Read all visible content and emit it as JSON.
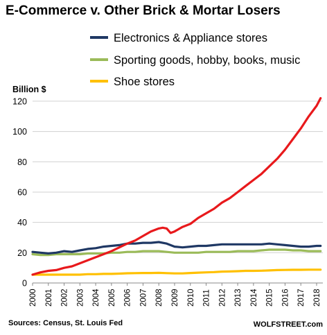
{
  "chart_data": {
    "type": "line",
    "title": "E-Commerce v. Other Brick & Mortar Losers",
    "ylabel": "Billion $",
    "ylim": [
      0,
      125
    ],
    "yticks": [
      0,
      20,
      40,
      60,
      80,
      100,
      120
    ],
    "xlim": [
      2000,
      2018
    ],
    "xticks": [
      "2000",
      "2001",
      "2002",
      "2003",
      "2004",
      "2005",
      "2006",
      "2007",
      "2008",
      "2009",
      "2010",
      "2011",
      "2012",
      "2013",
      "2014",
      "2015",
      "2016",
      "2017",
      "2018"
    ],
    "grid": "horizontal",
    "legend": "top",
    "series": [
      {
        "name": "",
        "color": "#e8191c",
        "x": [
          2000.0,
          2000.5,
          2001.0,
          2001.5,
          2002.0,
          2002.5,
          2003.0,
          2003.5,
          2004.0,
          2004.5,
          2005.0,
          2005.5,
          2006.0,
          2006.5,
          2007.0,
          2007.5,
          2008.0,
          2008.25,
          2008.5,
          2008.75,
          2009.0,
          2009.5,
          2010.0,
          2010.5,
          2011.0,
          2011.5,
          2012.0,
          2012.5,
          2013.0,
          2013.5,
          2014.0,
          2014.5,
          2015.0,
          2015.5,
          2016.0,
          2016.5,
          2017.0,
          2017.5,
          2018.0,
          2018.25
        ],
        "values": [
          5.5,
          7,
          8,
          8.5,
          10,
          11,
          13,
          15,
          17,
          19,
          21,
          23.5,
          26,
          28,
          31,
          34,
          36,
          36.5,
          36,
          33,
          34,
          37,
          39,
          43,
          46,
          49,
          53,
          56,
          60,
          64,
          68,
          72,
          77,
          82,
          88,
          95,
          102,
          110,
          117,
          122
        ]
      },
      {
        "name": "Electronics & Appliance stores",
        "color": "#1f3864",
        "x": [
          2000.0,
          2000.5,
          2001.0,
          2001.5,
          2002.0,
          2002.5,
          2003.0,
          2003.5,
          2004.0,
          2004.5,
          2005.0,
          2005.5,
          2006.0,
          2006.5,
          2007.0,
          2007.5,
          2008.0,
          2008.5,
          2009.0,
          2009.5,
          2010.0,
          2010.5,
          2011.0,
          2011.5,
          2012.0,
          2012.5,
          2013.0,
          2013.5,
          2014.0,
          2014.5,
          2015.0,
          2015.5,
          2016.0,
          2016.5,
          2017.0,
          2017.5,
          2018.0,
          2018.25
        ],
        "values": [
          20.5,
          20,
          19.5,
          20,
          21,
          20.5,
          21.5,
          22.5,
          23,
          24,
          24.5,
          25,
          26,
          26,
          26.5,
          26.5,
          27,
          26,
          24,
          23.5,
          24,
          24.5,
          24.5,
          25,
          25.5,
          25.5,
          25.5,
          25.5,
          25.5,
          25.5,
          26,
          25.5,
          25,
          24.5,
          24,
          24,
          24.5,
          24.5
        ]
      },
      {
        "name": "Sporting goods, hobby, books, music",
        "color": "#9bbb59",
        "x": [
          2000.0,
          2000.5,
          2001.0,
          2001.5,
          2002.0,
          2002.5,
          2003.0,
          2003.5,
          2004.0,
          2004.5,
          2005.0,
          2005.5,
          2006.0,
          2006.5,
          2007.0,
          2007.5,
          2008.0,
          2008.5,
          2009.0,
          2009.5,
          2010.0,
          2010.5,
          2011.0,
          2011.5,
          2012.0,
          2012.5,
          2013.0,
          2013.5,
          2014.0,
          2014.5,
          2015.0,
          2015.5,
          2016.0,
          2016.5,
          2017.0,
          2017.5,
          2018.0,
          2018.25
        ],
        "values": [
          19,
          18.5,
          18.5,
          19,
          19,
          19,
          19,
          19.5,
          19.5,
          19.5,
          20,
          20,
          20.5,
          20.5,
          21,
          21,
          21,
          20.5,
          20,
          20,
          20,
          20,
          20.5,
          20.5,
          20.5,
          20.5,
          21,
          21,
          21,
          21.5,
          22,
          22,
          22,
          21.5,
          21.5,
          21,
          21,
          21
        ]
      },
      {
        "name": "Shoe stores",
        "color": "#ffc000",
        "x": [
          2000.0,
          2000.5,
          2001.0,
          2001.5,
          2002.0,
          2002.5,
          2003.0,
          2003.5,
          2004.0,
          2004.5,
          2005.0,
          2005.5,
          2006.0,
          2006.5,
          2007.0,
          2007.5,
          2008.0,
          2008.5,
          2009.0,
          2009.5,
          2010.0,
          2010.5,
          2011.0,
          2011.5,
          2012.0,
          2012.5,
          2013.0,
          2013.5,
          2014.0,
          2014.5,
          2015.0,
          2015.5,
          2016.0,
          2016.5,
          2017.0,
          2017.5,
          2018.0,
          2018.25
        ],
        "values": [
          5.5,
          5.5,
          5.5,
          5.5,
          5.5,
          5.5,
          5.5,
          5.8,
          5.8,
          6,
          6,
          6.2,
          6.4,
          6.5,
          6.6,
          6.6,
          6.7,
          6.5,
          6.3,
          6.3,
          6.6,
          6.8,
          7,
          7.2,
          7.5,
          7.6,
          7.8,
          8,
          8,
          8.1,
          8.3,
          8.5,
          8.6,
          8.7,
          8.7,
          8.8,
          8.8,
          8.8
        ]
      }
    ]
  },
  "source_note": "Sources: Census, St. Louis Fed",
  "brand": "WOLFSTREET.com"
}
